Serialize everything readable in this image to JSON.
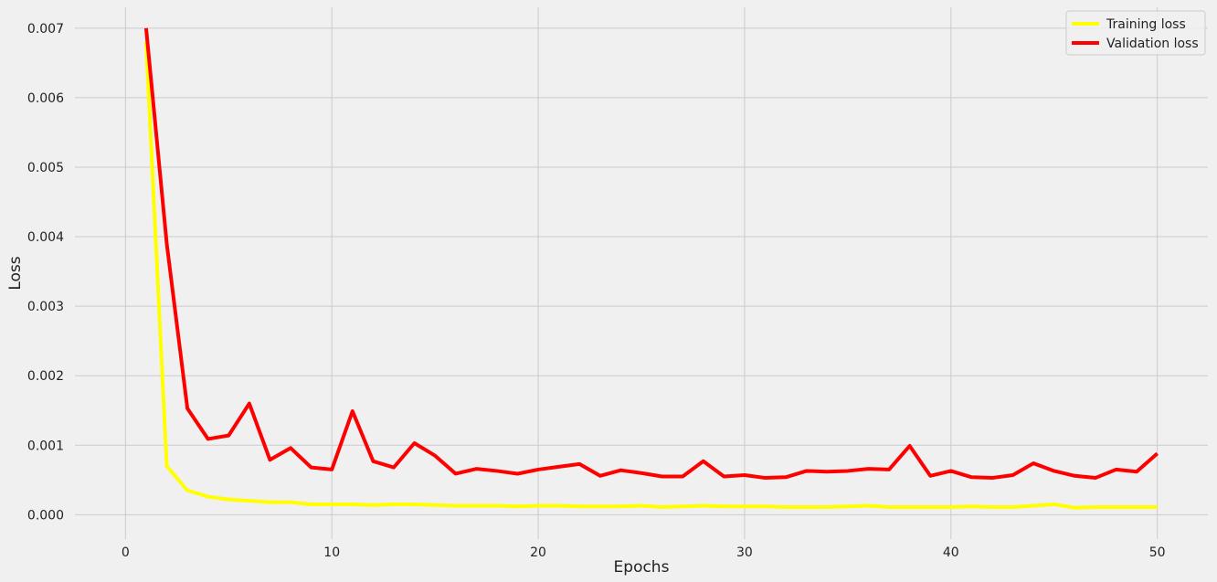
{
  "chart_data": {
    "type": "line",
    "title": "",
    "xlabel": "Epochs",
    "ylabel": "Loss",
    "xlim": [
      -2.45,
      52.45
    ],
    "ylim": [
      -0.00035,
      0.0073
    ],
    "xticks": [
      0,
      10,
      20,
      30,
      40,
      50
    ],
    "xtick_labels": [
      "0",
      "10",
      "20",
      "30",
      "40",
      "50"
    ],
    "yticks": [
      0.0,
      0.001,
      0.002,
      0.003,
      0.004,
      0.005,
      0.006,
      0.007
    ],
    "ytick_labels": [
      "0.000",
      "0.001",
      "0.002",
      "0.003",
      "0.004",
      "0.005",
      "0.006",
      "0.007"
    ],
    "grid": true,
    "legend_position": "top-right",
    "x": [
      1,
      2,
      3,
      4,
      5,
      6,
      7,
      8,
      9,
      10,
      11,
      12,
      13,
      14,
      15,
      16,
      17,
      18,
      19,
      20,
      21,
      22,
      23,
      24,
      25,
      26,
      27,
      28,
      29,
      30,
      31,
      32,
      33,
      34,
      35,
      36,
      37,
      38,
      39,
      40,
      41,
      42,
      43,
      44,
      45,
      46,
      47,
      48,
      49,
      50
    ],
    "series": [
      {
        "name": "Training loss",
        "color": "#ffff00",
        "values": [
          0.0068,
          0.0007,
          0.00035,
          0.00026,
          0.00022,
          0.0002,
          0.00018,
          0.00018,
          0.00015,
          0.00015,
          0.00015,
          0.00014,
          0.00015,
          0.00015,
          0.00014,
          0.00013,
          0.00013,
          0.00013,
          0.00012,
          0.00013,
          0.00013,
          0.00012,
          0.00012,
          0.00012,
          0.00013,
          0.00011,
          0.00012,
          0.00013,
          0.00012,
          0.00012,
          0.00012,
          0.00011,
          0.00011,
          0.00011,
          0.00012,
          0.00013,
          0.00011,
          0.00011,
          0.00011,
          0.00011,
          0.00012,
          0.00011,
          0.00011,
          0.00013,
          0.00015,
          0.0001,
          0.00011,
          0.00011,
          0.00011,
          0.00011
        ]
      },
      {
        "name": "Validation loss",
        "color": "#ff0000",
        "values": [
          0.007,
          0.0039,
          0.00153,
          0.00109,
          0.00114,
          0.0016,
          0.00079,
          0.00096,
          0.00068,
          0.00065,
          0.00149,
          0.00077,
          0.00068,
          0.00103,
          0.00085,
          0.00059,
          0.00066,
          0.00063,
          0.00059,
          0.00065,
          0.00069,
          0.00073,
          0.00056,
          0.00064,
          0.0006,
          0.00055,
          0.00055,
          0.00077,
          0.00055,
          0.00057,
          0.00053,
          0.00054,
          0.00063,
          0.00062,
          0.00063,
          0.00066,
          0.00065,
          0.00099,
          0.00056,
          0.00063,
          0.00054,
          0.00053,
          0.00057,
          0.00074,
          0.00063,
          0.00056,
          0.00053,
          0.00065,
          0.00062,
          0.00088
        ]
      }
    ]
  }
}
